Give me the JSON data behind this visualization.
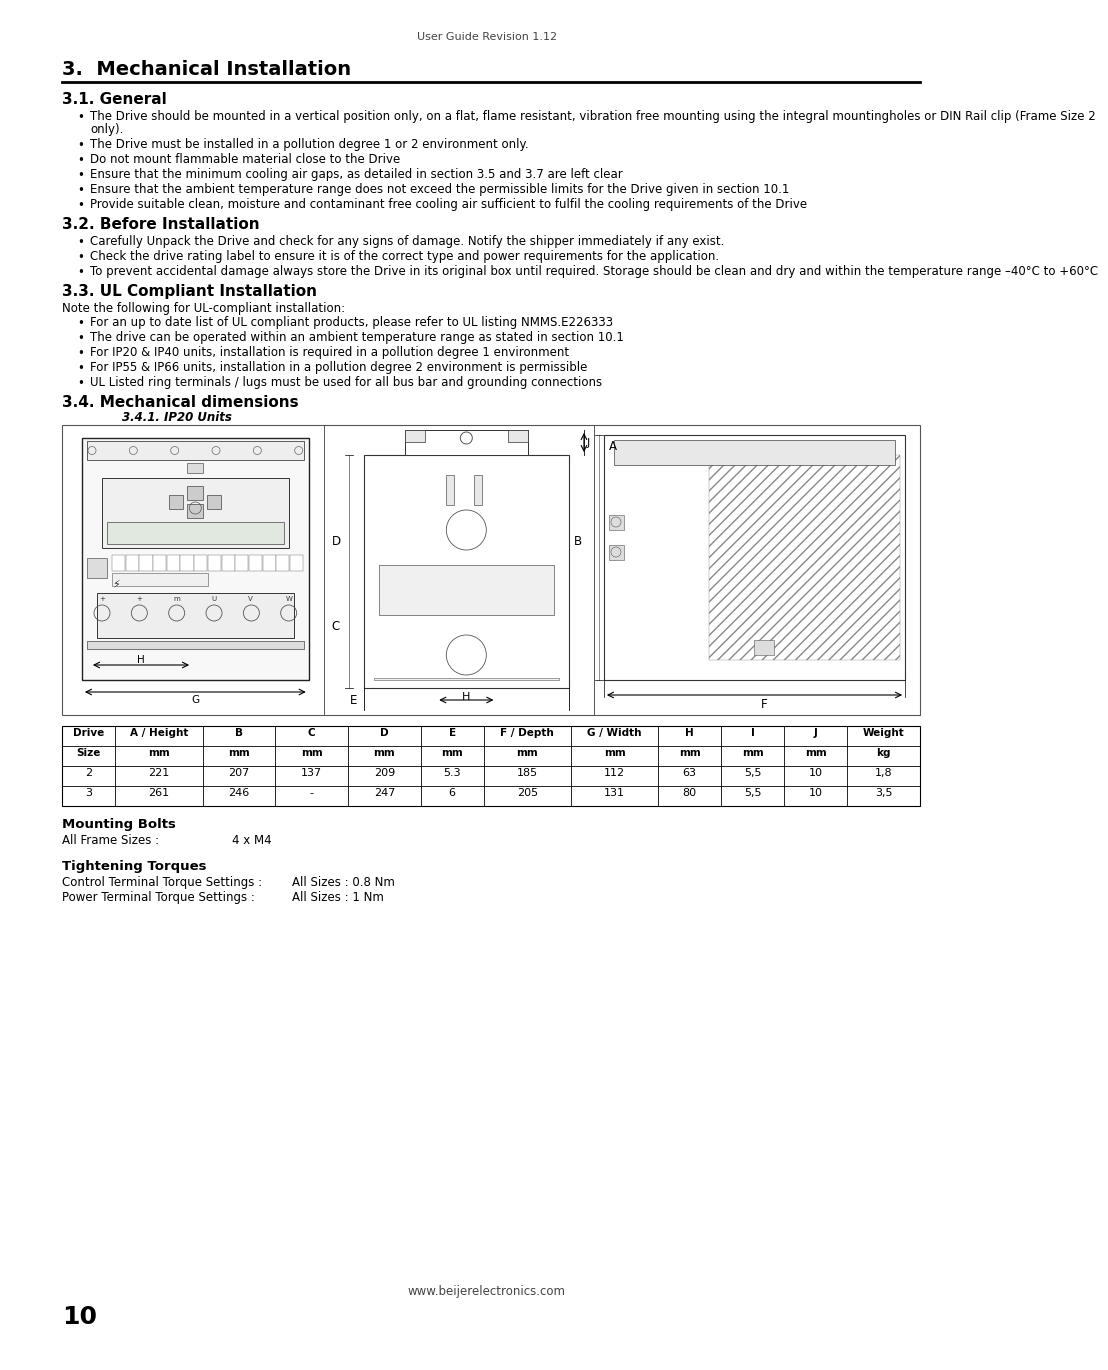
{
  "header_center": "User Guide Revision 1.12",
  "chapter_title": "3.  Mechanical Installation",
  "section_31_title": "3.1. General",
  "section_31_bullets": [
    "The Drive should be mounted in a vertical position only, on a flat, flame resistant, vibration free mounting using the integral mountingholes or DIN Rail clip (Frame Size 2 only).",
    "The Drive must be installed in a pollution degree 1 or 2 environment only.",
    "Do not mount flammable material close to the Drive",
    "Ensure that the minimum cooling air gaps, as detailed in section 3.5 and 3.7 are left clear",
    "Ensure that the ambient temperature range does not exceed the permissible limits for the Drive given in section 10.1",
    "Provide suitable clean, moisture and contaminant  free cooling air sufficient to fulfil the cooling requirements of the Drive"
  ],
  "section_32_title": "3.2. Before Installation",
  "section_32_bullets": [
    "Carefully Unpack the Drive and check for any signs of damage. Notify the shipper immediately if any exist.",
    "Check the drive rating label to ensure it is of the correct type and power requirements for the application.",
    "To prevent accidental damage always store the Drive in its original box until required. Storage should be clean and dry and within the temperature range –40°C to +60°C"
  ],
  "section_33_title": "3.3. UL Compliant Installation",
  "section_33_intro": "Note the following for UL-compliant installation:",
  "section_33_bullets": [
    "For an up to date list of UL compliant products, please refer to UL listing NMMS.E226333",
    "The drive can be operated within an ambient temperature range as stated in section 10.1",
    "For IP20 & IP40 units, installation is required in a pollution degree 1 environment",
    "For IP55 & IP66 units, installation in a pollution degree 2 environment is permissible",
    "UL Listed ring terminals / lugs must be used for all bus bar and grounding connections"
  ],
  "section_34_title": "3.4. Mechanical dimensions",
  "section_341_subtitle": "3.4.1. IP20 Units",
  "table_headers_row1": [
    "Drive",
    "A / Height",
    "B",
    "C",
    "D",
    "E",
    "F / Depth",
    "G / Width",
    "H",
    "I",
    "J",
    "Weight"
  ],
  "table_headers_row2": [
    "Size",
    "mm",
    "mm",
    "mm",
    "mm",
    "mm",
    "mm",
    "mm",
    "mm",
    "mm",
    "mm",
    "kg"
  ],
  "table_data": [
    [
      "2",
      "221",
      "207",
      "137",
      "209",
      "5.3",
      "185",
      "112",
      "63",
      "5,5",
      "10",
      "1,8"
    ],
    [
      "3",
      "261",
      "246",
      "-",
      "247",
      "6",
      "205",
      "131",
      "80",
      "5,5",
      "10",
      "3,5"
    ]
  ],
  "mounting_bolts_title": "Mounting Bolts",
  "tightening_torques_title": "Tightening Torques",
  "footer_center": "www.beijerelectronics.com",
  "footer_page": "10",
  "bg_color": "#ffffff",
  "text_color": "#000000"
}
